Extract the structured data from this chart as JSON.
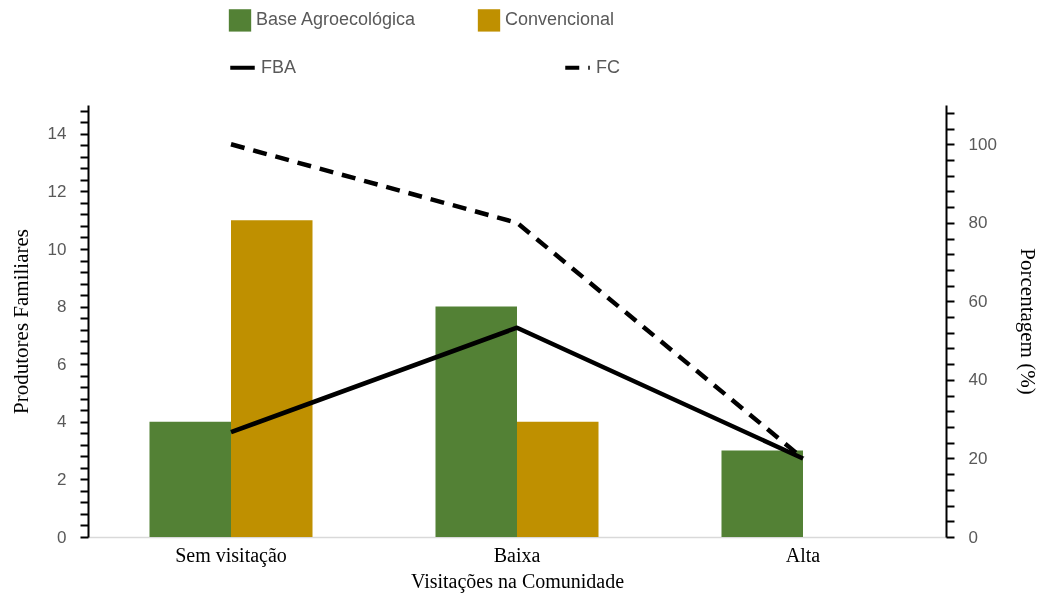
{
  "chart_data": {
    "type": "bar",
    "xlabel": "Visitações na Comunidade",
    "ylabel": "Produtores Familiares",
    "y2label": "Porcentagem (%)",
    "categories": [
      "Sem visitação",
      "Baixa",
      "Alta"
    ],
    "series": [
      {
        "name": "Base Agroecológica",
        "color": "#538135",
        "values": [
          4,
          8,
          3
        ]
      },
      {
        "name": "Convencional",
        "color": "#bf9000",
        "values": [
          11,
          4,
          0
        ]
      },
      {
        "name": "FBA",
        "type": "line",
        "axis": "y2",
        "color": "#000000",
        "line_style": "solid",
        "values": [
          26.7,
          53.3,
          20
        ]
      },
      {
        "name": "FC",
        "type": "line",
        "axis": "y2",
        "color": "#000000",
        "line_style": "dashed",
        "values": [
          100,
          80,
          20
        ]
      }
    ],
    "ylim": [
      0,
      15
    ],
    "yticks": [
      0,
      {
        "value": 0.4,
        "label": null
      },
      {
        "value": 0.8,
        "label": null
      },
      {
        "value": 1.2,
        "label": null
      },
      {
        "value": 1.6,
        "label": null
      },
      2,
      {
        "value": 2.4,
        "label": null
      },
      {
        "value": 2.8,
        "label": null
      },
      {
        "value": 3.2,
        "label": null
      },
      {
        "value": 3.6,
        "label": null
      },
      4,
      {
        "value": 4.4,
        "label": null
      },
      {
        "value": 4.8,
        "label": null
      },
      {
        "value": 5.2,
        "label": null
      },
      {
        "value": 5.6,
        "label": null
      },
      6,
      {
        "value": 6.4,
        "label": null
      },
      {
        "value": 6.8,
        "label": null
      },
      {
        "value": 7.2,
        "label": null
      },
      {
        "value": 7.6,
        "label": null
      },
      8,
      {
        "value": 8.4,
        "label": null
      },
      {
        "value": 8.8,
        "label": null
      },
      {
        "value": 9.2,
        "label": null
      },
      {
        "value": 9.6,
        "label": null
      },
      10,
      {
        "value": 10.4,
        "label": null
      },
      {
        "value": 10.8,
        "label": null
      },
      {
        "value": 11.2,
        "label": null
      },
      {
        "value": 11.6,
        "label": null
      },
      12,
      {
        "value": 12.4,
        "label": null
      },
      {
        "value": 12.8,
        "label": null
      },
      {
        "value": 13.2,
        "label": null
      },
      {
        "value": 13.6,
        "label": null
      },
      14,
      {
        "value": 14.4,
        "label": null
      },
      {
        "value": 14.8,
        "label": null
      }
    ],
    "y2lim": [
      0,
      110
    ],
    "y2ticks": [
      0,
      {
        "value": 4,
        "label": null
      },
      {
        "value": 8,
        "label": null
      },
      {
        "value": 12,
        "label": null
      },
      {
        "value": 16,
        "label": null
      },
      20,
      {
        "value": 24,
        "label": null
      },
      {
        "value": 28,
        "label": null
      },
      {
        "value": 32,
        "label": null
      },
      {
        "value": 36,
        "label": null
      },
      40,
      {
        "value": 44,
        "label": null
      },
      {
        "value": 48,
        "label": null
      },
      {
        "value": 52,
        "label": null
      },
      {
        "value": 56,
        "label": null
      },
      60,
      {
        "value": 64,
        "label": null
      },
      {
        "value": 68,
        "label": null
      },
      {
        "value": 72,
        "label": null
      },
      {
        "value": 76,
        "label": null
      },
      80,
      {
        "value": 84,
        "label": null
      },
      {
        "value": 88,
        "label": null
      },
      {
        "value": 92,
        "label": null
      },
      {
        "value": 96,
        "label": null
      },
      100,
      {
        "value": 104,
        "label": null
      },
      {
        "value": 108,
        "label": null
      }
    ],
    "legend": "top"
  }
}
